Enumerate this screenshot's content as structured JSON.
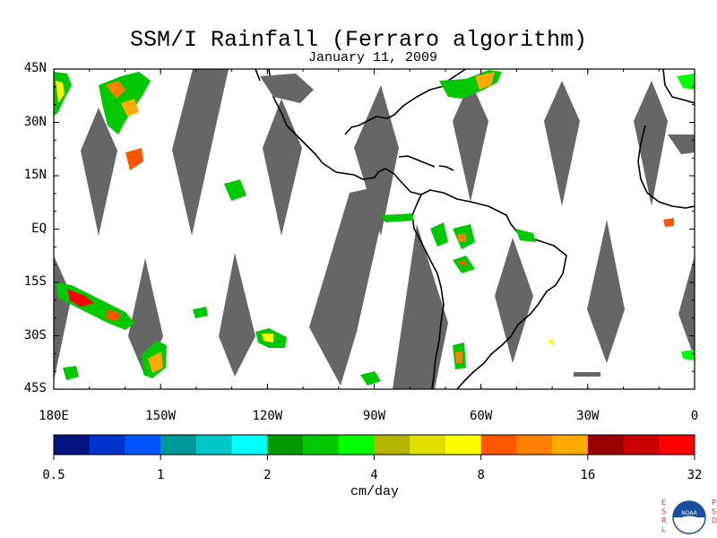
{
  "title": "SSM/I Rainfall (Ferraro algorithm)",
  "date": "January 11, 2009",
  "map": {
    "lon_range": [
      -180,
      0
    ],
    "lat_range": [
      -45,
      45
    ],
    "y_ticks": [
      "45N",
      "30N",
      "15N",
      "EQ",
      "15S",
      "30S",
      "45S"
    ],
    "x_ticks": [
      "180E",
      "150W",
      "120W",
      "90W",
      "60W",
      "30W",
      "0"
    ],
    "no_data_color": "#666666",
    "coastline_color": "#000000"
  },
  "colorbar": {
    "units": "cm/day",
    "tick_labels": [
      "0.5",
      "1",
      "2",
      "4",
      "8",
      "16",
      "32"
    ],
    "colors": [
      "#00137e",
      "#0033cc",
      "#0055ff",
      "#009999",
      "#00c8c8",
      "#00ffff",
      "#009900",
      "#00c800",
      "#00ff00",
      "#b4b400",
      "#e0e000",
      "#ffff00",
      "#ff5500",
      "#ff8000",
      "#ffaa00",
      "#990000",
      "#c80000",
      "#ff0000"
    ]
  },
  "logo": {
    "left_letters": [
      "E",
      "S",
      "R",
      "L"
    ],
    "right_letters": [
      "P",
      "S",
      "D"
    ],
    "badge": "NOAA"
  }
}
